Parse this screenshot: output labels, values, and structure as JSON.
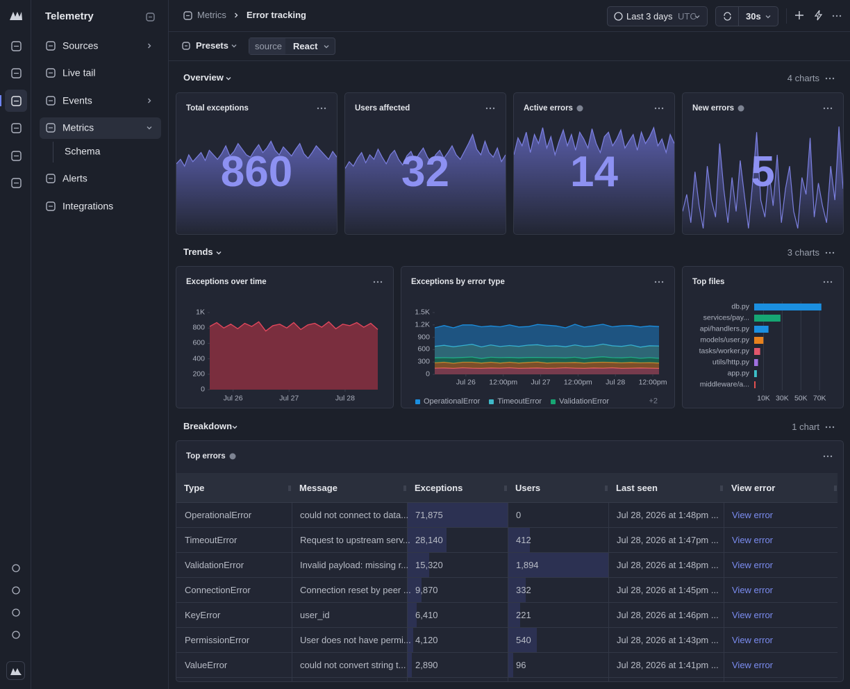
{
  "sidebar": {
    "title": "Telemetry",
    "items": [
      "Sources",
      "Live tail",
      "Events",
      "Metrics",
      "Schema",
      "Alerts",
      "Integrations"
    ]
  },
  "header": {
    "breadcrumb": [
      "Metrics",
      "Error tracking"
    ],
    "time_range": "Last 3 days",
    "timezone": "UTC",
    "refresh": "30s"
  },
  "filters": {
    "presets": "Presets",
    "filter_key": "source",
    "filter_value": "React"
  },
  "sections": [
    {
      "title": "Overview",
      "count": "4 charts"
    },
    {
      "title": "Trends",
      "count": "3 charts"
    },
    {
      "title": "Breakdown",
      "count": "1 chart"
    }
  ],
  "chart_data": [
    {
      "type": "stat",
      "title": "Total exceptions",
      "value": 860,
      "ylim": [
        0,
        100
      ],
      "values": [
        62,
        66,
        60,
        70,
        64,
        68,
        72,
        65,
        74,
        70,
        66,
        71,
        78,
        69,
        73,
        80,
        75,
        70,
        68,
        74,
        79,
        72,
        76,
        82,
        74,
        70,
        77,
        73,
        69,
        75,
        80,
        71,
        67,
        72,
        78,
        74,
        70,
        66,
        73,
        68
      ]
    },
    {
      "type": "stat",
      "title": "Users affected",
      "value": 32,
      "ylim": [
        0,
        100
      ],
      "values": [
        58,
        64,
        60,
        67,
        72,
        63,
        70,
        66,
        75,
        68,
        62,
        70,
        74,
        66,
        61,
        69,
        73,
        65,
        71,
        76,
        68,
        63,
        70,
        74,
        67,
        72,
        78,
        70,
        66,
        73,
        80,
        88,
        75,
        70,
        82,
        72,
        68,
        76,
        64,
        70
      ]
    },
    {
      "type": "stat",
      "title": "Active errors",
      "value": 14,
      "ylim": [
        0,
        100
      ],
      "values": [
        70,
        85,
        78,
        90,
        72,
        88,
        80,
        94,
        76,
        86,
        70,
        82,
        92,
        78,
        88,
        74,
        90,
        84,
        76,
        93,
        80,
        72,
        86,
        90,
        78,
        84,
        92,
        76,
        82,
        88,
        74,
        90,
        80,
        86,
        94,
        78,
        84,
        72,
        88,
        80
      ]
    },
    {
      "type": "stat",
      "title": "New errors",
      "value": 5,
      "ylim": [
        0,
        100
      ],
      "values": [
        20,
        35,
        10,
        55,
        25,
        5,
        60,
        30,
        15,
        80,
        40,
        10,
        50,
        20,
        65,
        35,
        5,
        45,
        90,
        30,
        15,
        55,
        25,
        70,
        10,
        40,
        60,
        20,
        5,
        50,
        35,
        85,
        15,
        45,
        25,
        10,
        60,
        30,
        95,
        40
      ]
    },
    {
      "type": "area",
      "title": "Exceptions over time",
      "color": "#e0475c",
      "fill": "#7a2e3e",
      "x": [
        0,
        3,
        6,
        9,
        12,
        15,
        18,
        21,
        24,
        27,
        30,
        33,
        36,
        39,
        42,
        45,
        48,
        51,
        54,
        57,
        60,
        63,
        66,
        69,
        72
      ],
      "values": [
        820,
        870,
        800,
        850,
        790,
        860,
        820,
        880,
        760,
        830,
        850,
        800,
        870,
        780,
        840,
        860,
        810,
        880,
        790,
        850,
        830,
        870,
        810,
        860,
        780
      ],
      "xlim": [
        0,
        72
      ],
      "xticks": [
        {
          "value": 10,
          "label": "Jul 26"
        },
        {
          "value": 34,
          "label": "Jul 27"
        },
        {
          "value": 58,
          "label": "Jul 28"
        }
      ],
      "ylim": [
        0,
        1000
      ],
      "yticks": [
        0,
        200,
        400,
        600,
        800,
        {
          "value": 1000,
          "label": "1K"
        }
      ]
    },
    {
      "type": "stacked_area",
      "title": "Exceptions by error type",
      "x": [
        0,
        3,
        6,
        9,
        12,
        15,
        18,
        21,
        24,
        27,
        30,
        33,
        36,
        39,
        42,
        45,
        48,
        51,
        54,
        57,
        60,
        63,
        66,
        69,
        72
      ],
      "series": [
        {
          "name": "OperationalError",
          "color": "#1b8fe0",
          "values": [
            450,
            480,
            460,
            500,
            470,
            490,
            460,
            480,
            500,
            470,
            450,
            490,
            510,
            480,
            460,
            500,
            470,
            490,
            480,
            460,
            500,
            470,
            490,
            480,
            470
          ]
        },
        {
          "name": "TimeoutError",
          "color": "#3fb8c8",
          "values": [
            280,
            300,
            270,
            290,
            310,
            280,
            300,
            270,
            290,
            280,
            300,
            310,
            280,
            290,
            270,
            300,
            290,
            280,
            310,
            290,
            280,
            300,
            270,
            290,
            300
          ]
        },
        {
          "name": "ValidationError",
          "color": "#17a673",
          "values": [
            120,
            110,
            130,
            115,
            125,
            110,
            120,
            130,
            115,
            125,
            120,
            110,
            130,
            120,
            115,
            125,
            110,
            120,
            130,
            115,
            120,
            125,
            110,
            120,
            115
          ]
        },
        {
          "color": "#e8821e",
          "values": [
            130,
            140,
            125,
            135,
            145,
            130,
            140,
            125,
            135,
            130,
            140,
            145,
            130,
            135,
            125,
            140,
            130,
            135,
            145,
            130,
            135,
            140,
            125,
            135,
            130
          ]
        },
        {
          "color": "#e0566c",
          "values": [
            150,
            155,
            145,
            160,
            150,
            145,
            155,
            150,
            160,
            145,
            150,
            155,
            145,
            150,
            160,
            150,
            145,
            155,
            150,
            160,
            145,
            150,
            155,
            150,
            145
          ]
        }
      ],
      "legend_more": "+2",
      "xlim": [
        0,
        72
      ],
      "xticks": [
        {
          "value": 10,
          "label": "Jul 26"
        },
        {
          "value": 22,
          "label": "12:00pm"
        },
        {
          "value": 34,
          "label": "Jul 27"
        },
        {
          "value": 46,
          "label": "12:00pm"
        },
        {
          "value": 58,
          "label": "Jul 28"
        },
        {
          "value": 70,
          "label": "12:00pm"
        }
      ],
      "ylim": [
        0,
        1500
      ],
      "yticks": [
        0,
        300,
        600,
        900,
        {
          "value": 1200,
          "label": "1.2K"
        },
        {
          "value": 1500,
          "label": "1.5K"
        }
      ]
    },
    {
      "type": "bar",
      "orientation": "horizontal",
      "title": "Top files",
      "grid": true,
      "categories": [
        "db.py",
        "services/pay...",
        "api/handlers.py",
        "models/user.py",
        "tasks/worker.py",
        "utils/http.py",
        "app.py",
        "middleware/a..."
      ],
      "values": [
        71875,
        28140,
        15320,
        9870,
        6410,
        4120,
        2890,
        1500
      ],
      "colors": [
        "#1b8fe0",
        "#16a673",
        "#1b8fe0",
        "#e8821e",
        "#e0566c",
        "#a070e0",
        "#3cc0c8",
        "#e05050"
      ],
      "xlim": [
        0,
        78000
      ],
      "xticks": [
        {
          "value": 10000,
          "label": "10K"
        },
        {
          "value": 30000,
          "label": "30K"
        },
        {
          "value": 50000,
          "label": "50K"
        },
        {
          "value": 70000,
          "label": "70K"
        }
      ]
    }
  ],
  "table": {
    "title": "Top errors",
    "columns": [
      "Type",
      "Message",
      "Exceptions",
      "Users",
      "Last seen",
      "View error"
    ],
    "rows": [
      {
        "type": "OperationalError",
        "message": "could not connect to data...",
        "exceptions": {
          "value": 71875,
          "label": "71,875"
        },
        "users": 0,
        "last_seen": "Jul 28, 2026 at 1:48pm ...",
        "link": "View error"
      },
      {
        "type": "TimeoutError",
        "message": "Request to upstream serv...",
        "exceptions": {
          "value": 28140,
          "label": "28,140"
        },
        "users": 412,
        "last_seen": "Jul 28, 2026 at 1:47pm ...",
        "link": "View error"
      },
      {
        "type": "ValidationError",
        "message": "Invalid payload: missing r...",
        "exceptions": {
          "value": 15320,
          "label": "15,320"
        },
        "users": {
          "value": 1894,
          "label": "1,894"
        },
        "last_seen": "Jul 28, 2026 at 1:48pm ...",
        "link": "View error"
      },
      {
        "type": "ConnectionError",
        "message": "Connection reset by peer ...",
        "exceptions": {
          "value": 9870,
          "label": "9,870"
        },
        "users": 332,
        "last_seen": "Jul 28, 2026 at 1:45pm ...",
        "link": "View error"
      },
      {
        "type": "KeyError",
        "message": "user_id",
        "exceptions": {
          "value": 6410,
          "label": "6,410"
        },
        "users": 221,
        "last_seen": "Jul 28, 2026 at 1:46pm ...",
        "link": "View error"
      },
      {
        "type": "PermissionError",
        "message": "User does not have permi...",
        "exceptions": {
          "value": 4120,
          "label": "4,120"
        },
        "users": 540,
        "last_seen": "Jul 28, 2026 at 1:43pm ...",
        "link": "View error"
      },
      {
        "type": "ValueError",
        "message": "could not convert string t...",
        "exceptions": {
          "value": 2890,
          "label": "2,890"
        },
        "users": 96,
        "last_seen": "Jul 28, 2026 at 1:41pm ...",
        "link": "View error"
      }
    ]
  }
}
